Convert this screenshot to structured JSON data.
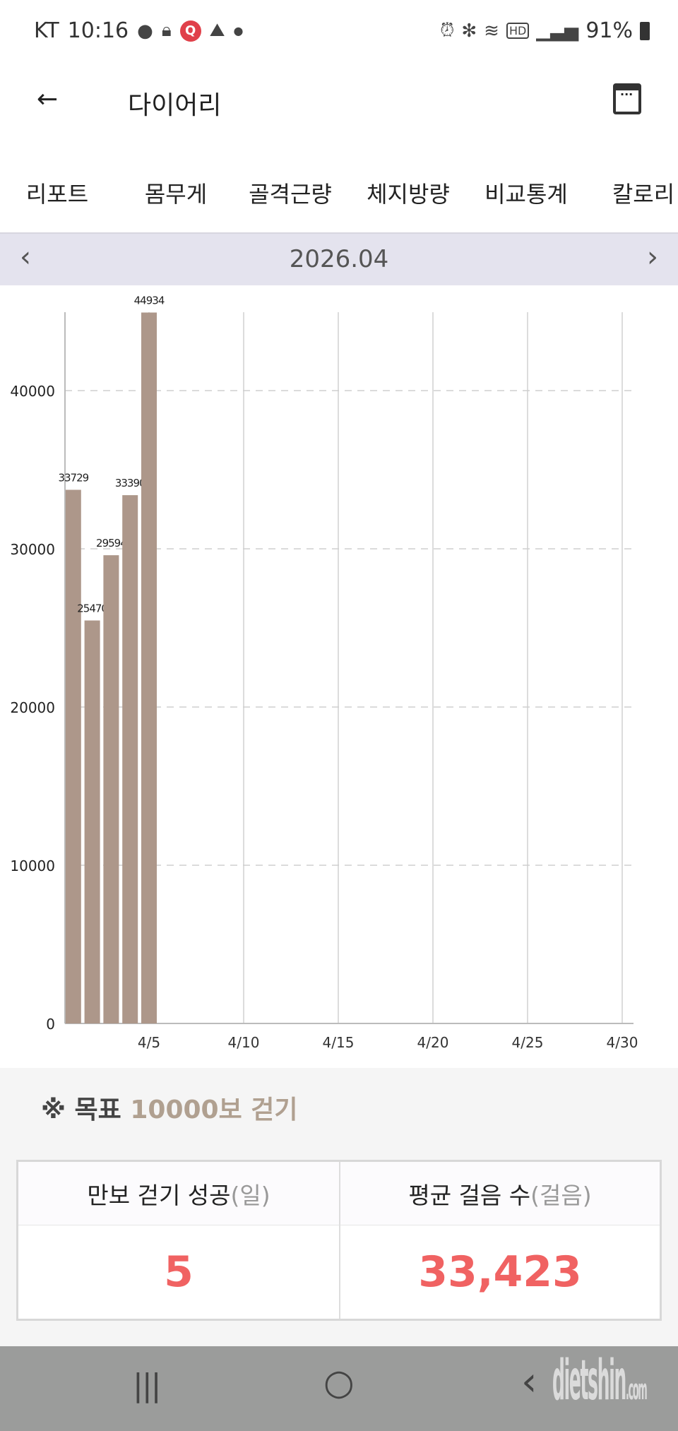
{
  "status_bar": {
    "carrier": "KT",
    "time": "10:16",
    "battery": "91%",
    "icons_left": [
      "talk-icon",
      "lock-icon",
      "q-app-icon",
      "dashin-icon",
      "dot-icon"
    ],
    "icons_right": [
      "alarm-icon",
      "bluetooth-icon",
      "wifi-icon",
      "hd-icon",
      "signal-icon",
      "battery-icon"
    ]
  },
  "header": {
    "title": "다이어리",
    "back_icon": "arrow-left-icon",
    "calendar_icon": "calendar-icon"
  },
  "tabs": [
    {
      "label": "리포트"
    },
    {
      "label": "몸무게"
    },
    {
      "label": "골격근량"
    },
    {
      "label": "체지방량"
    },
    {
      "label": "비교통계"
    },
    {
      "label": "칼로리"
    }
  ],
  "month_nav": {
    "label": "2026.04",
    "prev": "‹",
    "next": "›"
  },
  "chart_data": {
    "type": "bar",
    "x": [
      1,
      2,
      3,
      4,
      5
    ],
    "values": [
      33729,
      25470,
      29594,
      33390,
      44934
    ],
    "data_labels": [
      "33729",
      "25470",
      "29594",
      "33390",
      "44934"
    ],
    "xticks": [
      "4/5",
      "4/10",
      "4/15",
      "4/20",
      "4/25",
      "4/30"
    ],
    "xtick_days": [
      5,
      10,
      15,
      20,
      25,
      30
    ],
    "yticks": [
      "0",
      "10000",
      "20000",
      "30000",
      "40000"
    ],
    "ytick_values": [
      0,
      10000,
      20000,
      30000,
      40000
    ],
    "xlim": [
      1,
      30
    ],
    "ylim": [
      0,
      45000
    ],
    "grid": true,
    "bar_color": "#ad978a"
  },
  "goal": {
    "mark": "※",
    "label": "목표",
    "value": "10000보 걷기"
  },
  "summary": {
    "success_label": "만보 걷기 성공",
    "success_unit": "(일)",
    "success_value": "5",
    "avg_label": "평균 걸음 수",
    "avg_unit": "(걸음)",
    "avg_value": "33,423",
    "value_color": "#f06262"
  },
  "nav_bar": {
    "recent": "|||",
    "home": "○",
    "back": "‹"
  },
  "watermark": "dietshin.com"
}
